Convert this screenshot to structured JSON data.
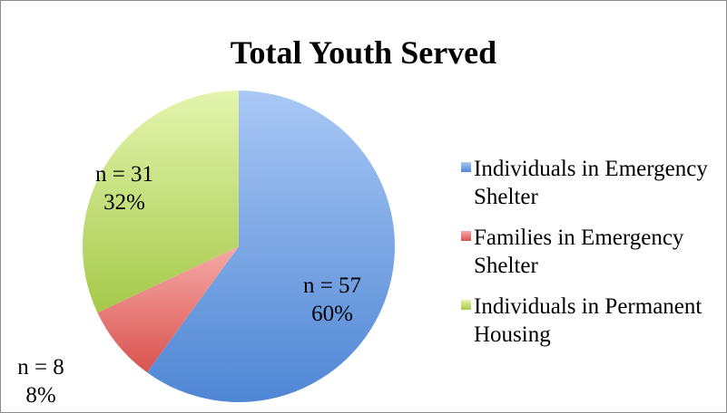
{
  "chart_data": {
    "type": "pie",
    "title": "Total Youth Served",
    "slices": [
      {
        "name": "Individuals in Emergency Shelter",
        "count_label": "n = 57",
        "percent_label": "60%",
        "value": 60,
        "color_light": "#a9c8f5",
        "color_dark": "#4f86d4"
      },
      {
        "name": "Families in Emergency Shelter",
        "count_label": "n = 8",
        "percent_label": "8%",
        "value": 8,
        "color_light": "#f7aaa7",
        "color_dark": "#d9534f"
      },
      {
        "name": "Individuals in Permanent Housing",
        "count_label": "n = 31",
        "percent_label": "32%",
        "value": 32,
        "color_light": "#e4f5ae",
        "color_dark": "#a5c94a"
      }
    ],
    "start_angle": "12 o'clock",
    "direction": "clockwise",
    "legend_position": "right"
  }
}
